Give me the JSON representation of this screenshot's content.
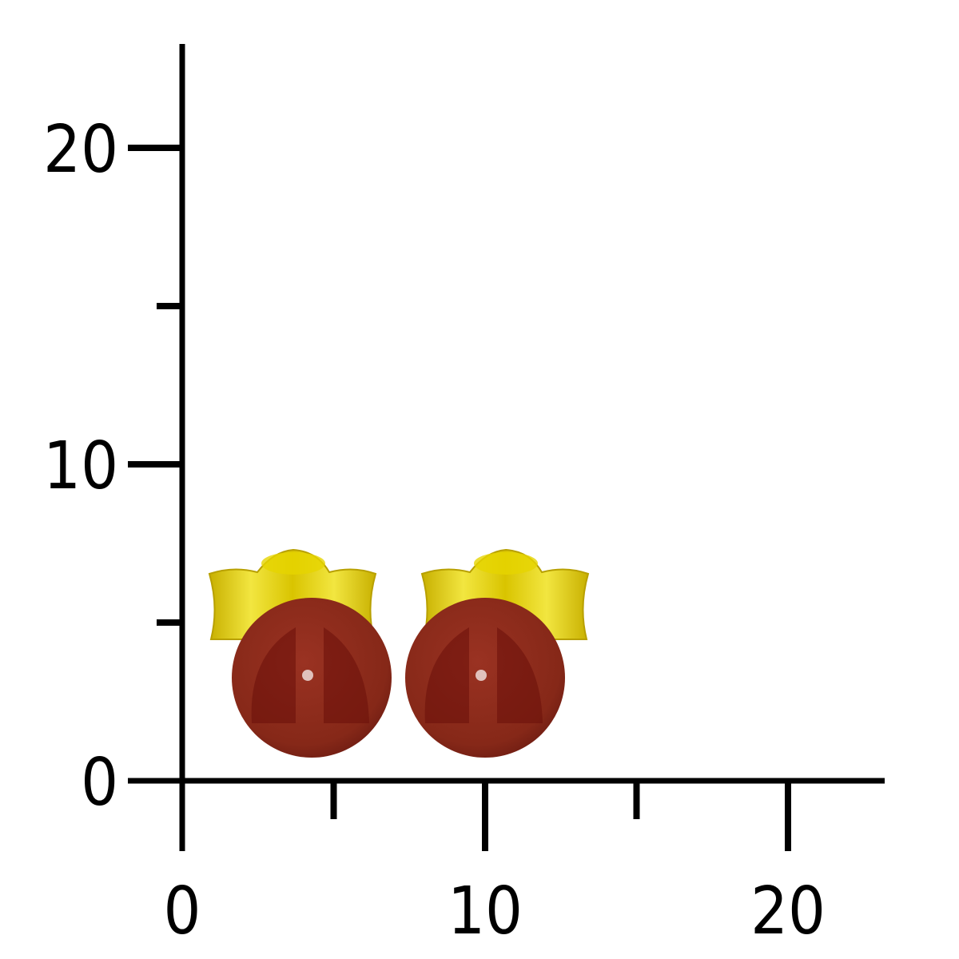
{
  "scale": {
    "y_ticks": [
      {
        "value": 0,
        "label": "0",
        "major": true
      },
      {
        "value": 5,
        "label": "",
        "major": false
      },
      {
        "value": 10,
        "label": "10",
        "major": true
      },
      {
        "value": 15,
        "label": "",
        "major": false
      },
      {
        "value": 20,
        "label": "20",
        "major": true
      }
    ],
    "x_ticks": [
      {
        "value": 0,
        "label": "0",
        "major": true
      },
      {
        "value": 5,
        "label": "",
        "major": false
      },
      {
        "value": 10,
        "label": "10",
        "major": true
      },
      {
        "value": 15,
        "label": "",
        "major": false
      },
      {
        "value": 20,
        "label": "20",
        "major": true
      }
    ],
    "axis_color": "#000000"
  },
  "product": {
    "bead_color": "#8a2a1c",
    "bead_shade_color": "#6a0f0a",
    "metal_color": "#e6d400",
    "bead_diameter": 5
  }
}
